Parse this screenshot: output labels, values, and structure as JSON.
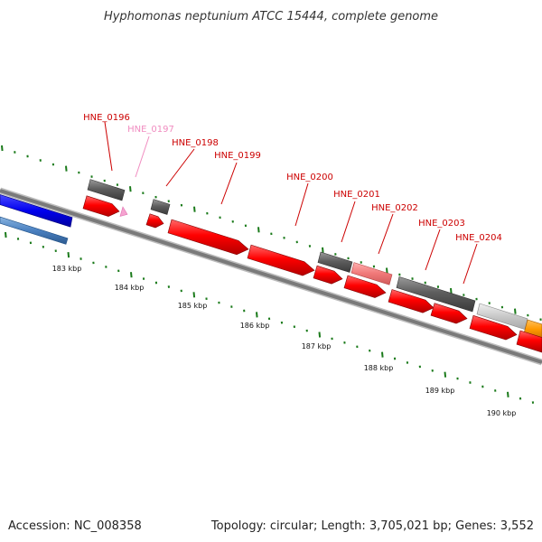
{
  "title": "Hyphomonas neptunium ATCC 15444, complete genome",
  "footer": {
    "accession": "Accession: NC_008358",
    "summary": "Topology: circular; Length: 3,705,021 bp; Genes: 3,552"
  },
  "colors": {
    "backbone": "#8c8c8c",
    "forward_gene": "#ff0000",
    "reverse_gene": "#606060",
    "tick": "#1a7a1a",
    "label_red": "#cc0000",
    "label_pink": "#f08cc0"
  },
  "gene_labels": [
    {
      "name": "HNE_0196",
      "color": "#cc0000"
    },
    {
      "name": "HNE_0197",
      "color": "#f08cc0"
    },
    {
      "name": "HNE_0198",
      "color": "#cc0000"
    },
    {
      "name": "HNE_0199",
      "color": "#cc0000"
    },
    {
      "name": "HNE_0200",
      "color": "#cc0000"
    },
    {
      "name": "HNE_0201",
      "color": "#cc0000"
    },
    {
      "name": "HNE_0202",
      "color": "#cc0000"
    },
    {
      "name": "HNE_0203",
      "color": "#cc0000"
    },
    {
      "name": "HNE_0204",
      "color": "#cc0000"
    }
  ],
  "scale_labels": [
    "183 kbp",
    "184 kbp",
    "185 kbp",
    "186 kbp",
    "187 kbp",
    "188 kbp",
    "189 kbp",
    "190 kbp"
  ]
}
